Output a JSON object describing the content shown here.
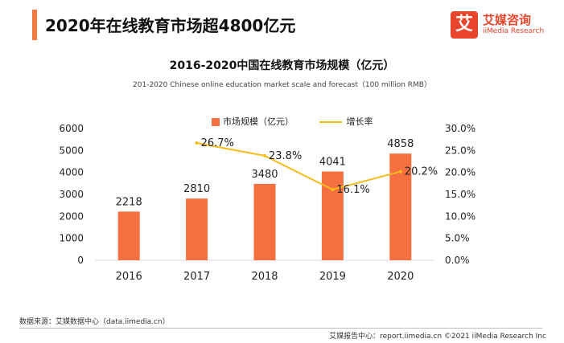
{
  "header": {
    "headline": "2020年在线教育市场超4800亿元"
  },
  "brand": {
    "logo_glyph": "艾",
    "name_cn": "艾媒咨询",
    "name_en": "iiMedia Research",
    "color": "#e8452c",
    "accent_color": "#f07a3f"
  },
  "chart_data": {
    "type": "bar+line",
    "title": "2016-2020中国在线教育市场规模（亿元）",
    "subtitle": "201-2020 Chinese online education market scale and forecast（100 million RMB）",
    "categories": [
      "2016",
      "2017",
      "2018",
      "2019",
      "2020"
    ],
    "series": [
      {
        "name": "市场规模（亿元）",
        "type": "bar",
        "axis": "left",
        "color": "#f56f3f",
        "values": [
          2218,
          2810,
          3480,
          4041,
          4858
        ],
        "labels": [
          "2218",
          "2810",
          "3480",
          "4041",
          "4858"
        ]
      },
      {
        "name": "增长率",
        "type": "line",
        "axis": "right",
        "color": "#f7bb1c",
        "values": [
          null,
          26.7,
          23.8,
          16.1,
          20.2
        ],
        "labels": [
          "",
          "26.7%",
          "23.8%",
          "16.1%",
          "20.2%"
        ]
      }
    ],
    "y_left": {
      "min": 0,
      "max": 6000,
      "ticks": [
        "0",
        "1000",
        "2000",
        "3000",
        "4000",
        "5000",
        "6000"
      ]
    },
    "y_right": {
      "min": 0,
      "max": 30,
      "ticks": [
        "0.0%",
        "5.0%",
        "10.0%",
        "15.0%",
        "20.0%",
        "25.0%",
        "30.0%"
      ]
    },
    "grid": false,
    "legend_position": "top-center"
  },
  "footer": {
    "source": "数据来源：艾媒数据中心（data.iimedia.cn）",
    "report": "艾媒报告中心：report.iimedia.cn  ©2021 iiMedia Research Inc"
  }
}
